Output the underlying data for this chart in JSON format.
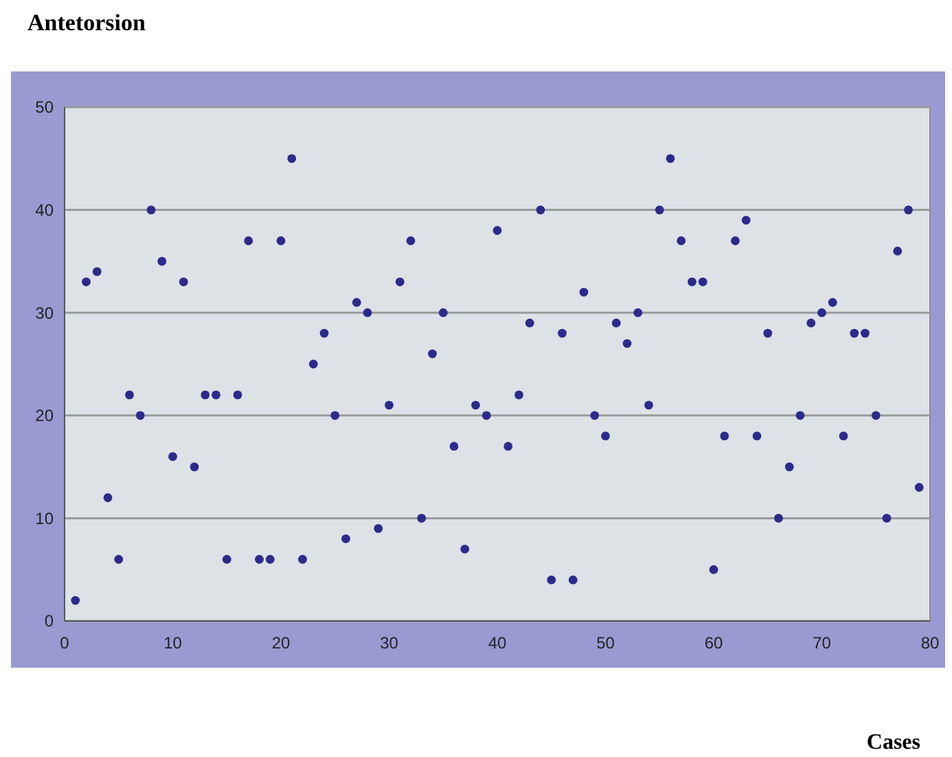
{
  "chart_data": {
    "type": "scatter",
    "title": "Antetorsion",
    "xlabel": "Cases",
    "x": [
      1,
      2,
      3,
      4,
      5,
      6,
      7,
      8,
      9,
      10,
      11,
      12,
      13,
      14,
      15,
      16,
      17,
      18,
      19,
      20,
      21,
      22,
      23,
      24,
      25,
      26,
      27,
      28,
      29,
      30,
      31,
      32,
      33,
      34,
      35,
      36,
      37,
      38,
      39,
      40,
      41,
      42,
      43,
      44,
      45,
      46,
      47,
      48,
      49,
      50,
      51,
      52,
      53,
      54,
      55,
      56,
      57,
      58,
      59,
      60,
      61,
      62,
      63,
      64,
      65,
      66,
      67,
      68,
      69,
      70,
      71,
      72,
      73,
      74,
      75,
      76,
      77,
      78,
      79
    ],
    "series": [
      {
        "color": "#2b2b8c",
        "values": [
          2,
          33,
          34,
          12,
          6,
          22,
          20,
          40,
          35,
          16,
          33,
          15,
          22,
          22,
          6,
          22,
          37,
          6,
          6,
          37,
          45,
          6,
          25,
          28,
          20,
          8,
          31,
          30,
          9,
          21,
          33,
          37,
          10,
          26,
          30,
          17,
          7,
          21,
          20,
          38,
          17,
          22,
          29,
          40,
          4,
          28,
          4,
          32,
          20,
          18,
          29,
          27,
          30,
          21,
          40,
          45,
          37,
          33,
          33,
          5,
          18,
          37,
          39,
          18,
          28,
          10,
          15,
          20,
          29,
          30,
          31,
          18,
          28,
          28,
          20,
          10,
          36,
          40,
          13
        ]
      }
    ],
    "xlim": [
      0,
      80
    ],
    "xticks": [
      0,
      10,
      20,
      30,
      40,
      50,
      60,
      70,
      80
    ],
    "ylim": [
      0,
      50
    ],
    "yticks": [
      0,
      10,
      20,
      30,
      40,
      50
    ],
    "grid": "y",
    "marker": "circle"
  }
}
